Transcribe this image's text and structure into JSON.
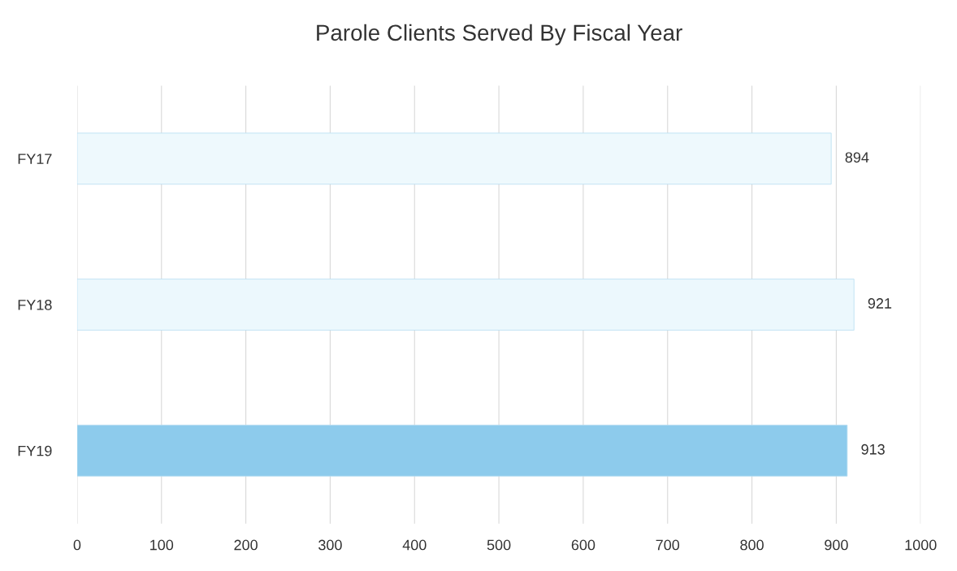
{
  "chart_data": {
    "type": "bar",
    "orientation": "horizontal",
    "title": "Parole Clients Served By Fiscal Year",
    "categories": [
      "FY17",
      "FY18",
      "FY19"
    ],
    "values": [
      894,
      921,
      913
    ],
    "colors": [
      "#eef9fd",
      "#ecf8fd",
      "#8dcbec"
    ],
    "xlim": [
      0,
      1000
    ],
    "xticks": [
      0,
      100,
      200,
      300,
      400,
      500,
      600,
      700,
      800,
      900,
      1000
    ],
    "grid": "x",
    "data_labels": true
  }
}
